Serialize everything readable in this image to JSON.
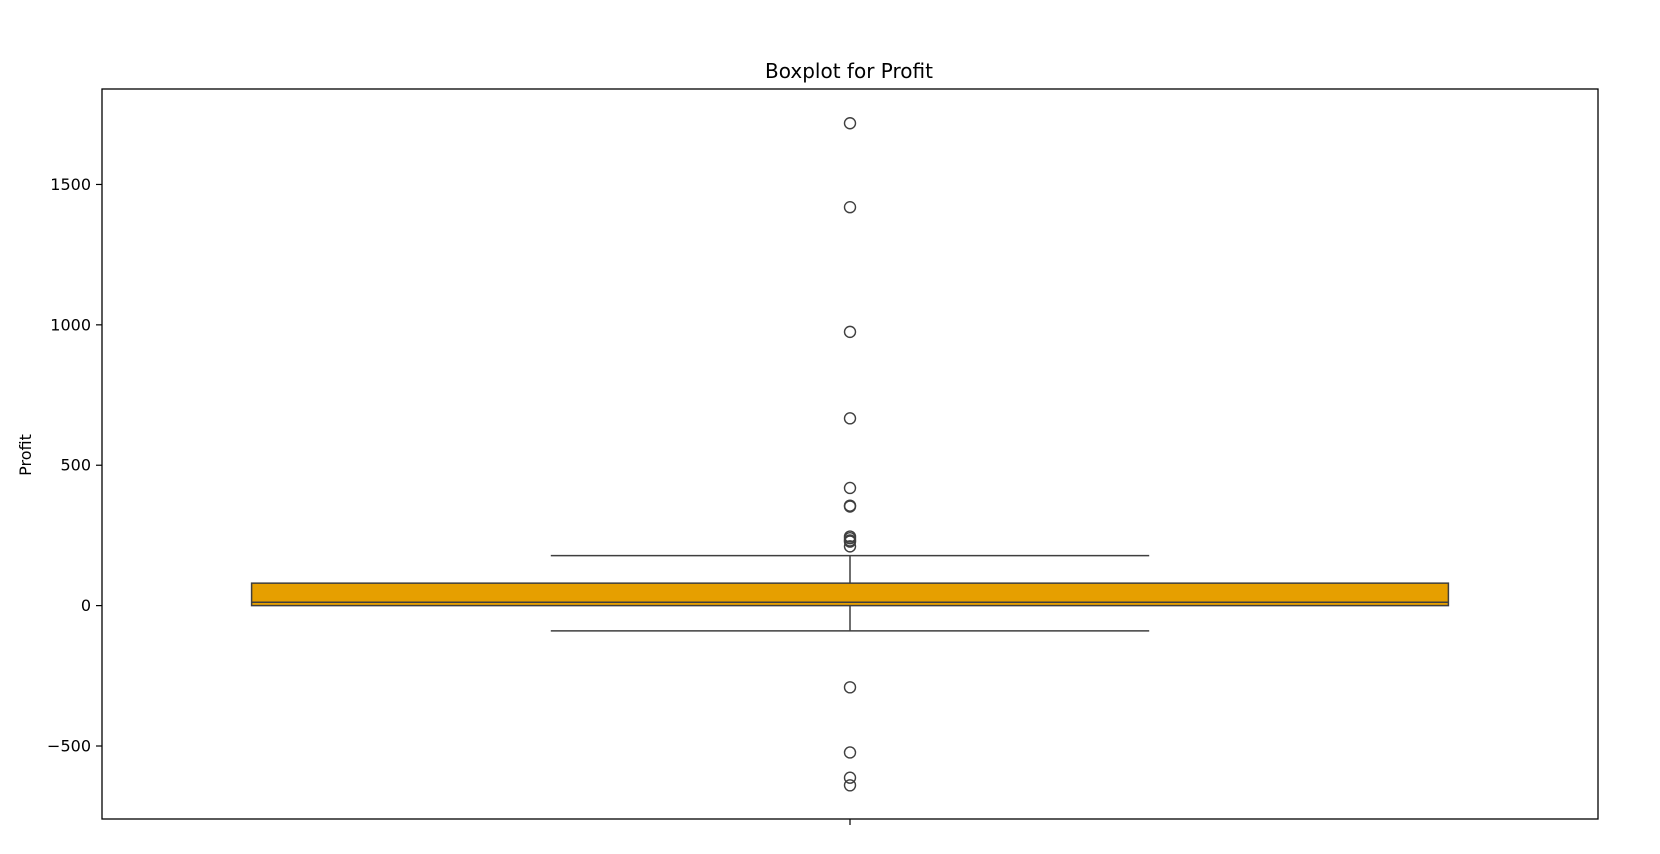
{
  "chart_data": {
    "type": "boxplot",
    "title": "Boxplot for Profit",
    "xlabel": "",
    "ylabel": "Profit",
    "ylim": [
      -760,
      1840
    ],
    "yticks": [
      -500,
      0,
      500,
      1000,
      1500
    ],
    "ytick_labels": [
      "−500",
      "0",
      "500",
      "1000",
      "1500"
    ],
    "grid": false,
    "box": {
      "color": "#e69f00",
      "q1": 0,
      "median": 12,
      "q3": 80,
      "whisker_low": -90,
      "whisker_high": 178
    },
    "outliers": [
      1718,
      1419,
      975,
      667,
      419,
      356,
      353,
      246,
      240,
      232,
      228,
      211,
      -291,
      -523,
      -613,
      -640
    ]
  }
}
